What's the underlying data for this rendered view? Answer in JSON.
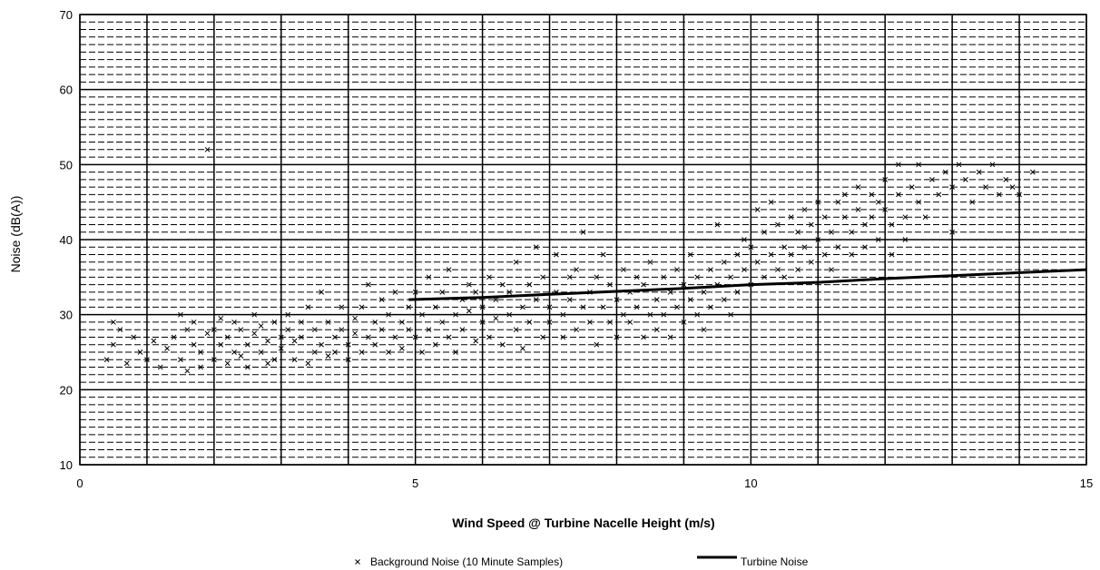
{
  "chart_data": {
    "type": "scatter",
    "title": "",
    "xlabel": "Wind Speed @ Turbine Nacelle Height (m/s)",
    "ylabel": "Noise (dB(A))",
    "xlim": [
      0,
      15
    ],
    "ylim": [
      10,
      70
    ],
    "x_ticks": [
      0,
      5,
      10,
      15
    ],
    "x_tick_labels": [
      "0",
      "5",
      "10",
      "15"
    ],
    "x_minor_gridlines": [
      1,
      2,
      3,
      4,
      6,
      7,
      8,
      9,
      11,
      12,
      13,
      14
    ],
    "y_ticks": [
      10,
      20,
      30,
      40,
      50,
      60,
      70
    ],
    "y_tick_labels": [
      "10",
      "20",
      "30",
      "40",
      "50",
      "60",
      "70"
    ],
    "y_minor_step": 1,
    "grid": true,
    "legend_position": "bottom-center",
    "series": [
      {
        "name": "Background Noise (10 Minute Samples)",
        "kind": "scatter",
        "marker": "x",
        "color": "#000000",
        "points": [
          [
            0.4,
            24
          ],
          [
            0.5,
            26
          ],
          [
            0.5,
            29
          ],
          [
            0.6,
            28
          ],
          [
            0.7,
            23.5
          ],
          [
            0.8,
            27
          ],
          [
            0.9,
            25
          ],
          [
            1.0,
            24
          ],
          [
            1.1,
            26.5
          ],
          [
            1.2,
            23
          ],
          [
            1.3,
            25.5
          ],
          [
            1.4,
            27
          ],
          [
            1.5,
            24
          ],
          [
            1.5,
            30
          ],
          [
            1.6,
            22.5
          ],
          [
            1.6,
            28
          ],
          [
            1.7,
            26
          ],
          [
            1.7,
            29
          ],
          [
            1.8,
            25
          ],
          [
            1.8,
            23
          ],
          [
            1.9,
            27.5
          ],
          [
            1.9,
            52
          ],
          [
            2.0,
            24
          ],
          [
            2.0,
            28
          ],
          [
            2.1,
            26
          ],
          [
            2.1,
            29.5
          ],
          [
            2.2,
            23.5
          ],
          [
            2.2,
            27
          ],
          [
            2.3,
            25
          ],
          [
            2.3,
            29
          ],
          [
            2.4,
            24.5
          ],
          [
            2.4,
            28
          ],
          [
            2.5,
            26
          ],
          [
            2.5,
            23
          ],
          [
            2.6,
            27.5
          ],
          [
            2.6,
            30
          ],
          [
            2.7,
            25
          ],
          [
            2.7,
            28.5
          ],
          [
            2.8,
            23.5
          ],
          [
            2.8,
            26.5
          ],
          [
            2.9,
            29
          ],
          [
            2.9,
            24
          ],
          [
            3.0,
            27
          ],
          [
            3.0,
            25.5
          ],
          [
            3.1,
            28
          ],
          [
            3.1,
            30
          ],
          [
            3.2,
            24
          ],
          [
            3.2,
            26.5
          ],
          [
            3.3,
            29
          ],
          [
            3.3,
            27
          ],
          [
            3.4,
            23.5
          ],
          [
            3.4,
            31
          ],
          [
            3.5,
            25
          ],
          [
            3.5,
            28
          ],
          [
            3.6,
            26
          ],
          [
            3.6,
            33
          ],
          [
            3.7,
            24.5
          ],
          [
            3.7,
            29
          ],
          [
            3.8,
            27
          ],
          [
            3.8,
            25
          ],
          [
            3.9,
            28
          ],
          [
            3.9,
            31
          ],
          [
            4.0,
            26
          ],
          [
            4.0,
            24
          ],
          [
            4.1,
            27.5
          ],
          [
            4.1,
            29.5
          ],
          [
            4.2,
            25
          ],
          [
            4.2,
            31
          ],
          [
            4.3,
            27
          ],
          [
            4.3,
            34
          ],
          [
            4.4,
            26
          ],
          [
            4.4,
            29
          ],
          [
            4.5,
            28
          ],
          [
            4.5,
            32
          ],
          [
            4.6,
            25
          ],
          [
            4.6,
            30
          ],
          [
            4.7,
            27
          ],
          [
            4.7,
            33
          ],
          [
            4.8,
            29
          ],
          [
            4.8,
            25.5
          ],
          [
            4.9,
            31
          ],
          [
            4.9,
            28
          ],
          [
            5.0,
            27
          ],
          [
            5.0,
            33
          ],
          [
            5.1,
            25
          ],
          [
            5.1,
            30
          ],
          [
            5.2,
            28
          ],
          [
            5.2,
            35
          ],
          [
            5.3,
            26
          ],
          [
            5.3,
            31
          ],
          [
            5.4,
            29
          ],
          [
            5.4,
            33
          ],
          [
            5.5,
            27
          ],
          [
            5.5,
            36
          ],
          [
            5.6,
            30
          ],
          [
            5.6,
            25
          ],
          [
            5.7,
            32
          ],
          [
            5.7,
            28
          ],
          [
            5.8,
            34
          ],
          [
            5.8,
            30.5
          ],
          [
            5.9,
            26.5
          ],
          [
            5.9,
            33
          ],
          [
            6.0,
            29
          ],
          [
            6.0,
            31
          ],
          [
            6.1,
            35
          ],
          [
            6.1,
            27
          ],
          [
            6.2,
            32
          ],
          [
            6.2,
            29.5
          ],
          [
            6.3,
            34
          ],
          [
            6.3,
            26
          ],
          [
            6.4,
            30
          ],
          [
            6.4,
            33
          ],
          [
            6.5,
            28
          ],
          [
            6.5,
            37
          ],
          [
            6.6,
            31
          ],
          [
            6.6,
            25.5
          ],
          [
            6.7,
            34
          ],
          [
            6.7,
            29
          ],
          [
            6.8,
            32
          ],
          [
            6.8,
            39
          ],
          [
            6.9,
            27
          ],
          [
            6.9,
            35
          ],
          [
            7.0,
            31
          ],
          [
            7.0,
            29
          ],
          [
            7.1,
            33
          ],
          [
            7.1,
            38
          ],
          [
            7.2,
            27
          ],
          [
            7.2,
            30
          ],
          [
            7.3,
            35
          ],
          [
            7.3,
            32
          ],
          [
            7.4,
            28
          ],
          [
            7.4,
            36
          ],
          [
            7.5,
            31
          ],
          [
            7.5,
            41
          ],
          [
            7.6,
            29
          ],
          [
            7.6,
            33
          ],
          [
            7.7,
            35
          ],
          [
            7.7,
            26
          ],
          [
            7.8,
            31
          ],
          [
            7.8,
            38
          ],
          [
            7.9,
            29
          ],
          [
            7.9,
            34
          ],
          [
            8.0,
            32
          ],
          [
            8.0,
            27
          ],
          [
            8.1,
            36
          ],
          [
            8.1,
            30
          ],
          [
            8.2,
            33
          ],
          [
            8.2,
            29
          ],
          [
            8.3,
            35
          ],
          [
            8.3,
            31
          ],
          [
            8.4,
            27
          ],
          [
            8.4,
            34
          ],
          [
            8.5,
            30
          ],
          [
            8.5,
            37
          ],
          [
            8.6,
            32
          ],
          [
            8.6,
            28
          ],
          [
            8.7,
            35
          ],
          [
            8.7,
            30
          ],
          [
            8.8,
            33
          ],
          [
            8.8,
            27
          ],
          [
            8.9,
            36
          ],
          [
            8.9,
            31
          ],
          [
            9.0,
            29
          ],
          [
            9.0,
            34
          ],
          [
            9.1,
            32
          ],
          [
            9.1,
            38
          ],
          [
            9.2,
            30
          ],
          [
            9.2,
            35
          ],
          [
            9.3,
            33
          ],
          [
            9.3,
            28
          ],
          [
            9.4,
            36
          ],
          [
            9.4,
            31
          ],
          [
            9.5,
            34
          ],
          [
            9.5,
            42
          ],
          [
            9.6,
            32
          ],
          [
            9.6,
            37
          ],
          [
            9.7,
            35
          ],
          [
            9.7,
            30
          ],
          [
            9.8,
            38
          ],
          [
            9.8,
            33
          ],
          [
            9.9,
            36
          ],
          [
            9.9,
            40
          ],
          [
            10.0,
            34
          ],
          [
            10.0,
            39
          ],
          [
            10.1,
            37
          ],
          [
            10.1,
            44
          ],
          [
            10.2,
            35
          ],
          [
            10.2,
            41
          ],
          [
            10.3,
            38
          ],
          [
            10.3,
            45
          ],
          [
            10.4,
            36
          ],
          [
            10.4,
            42
          ],
          [
            10.5,
            39
          ],
          [
            10.5,
            35
          ],
          [
            10.6,
            43
          ],
          [
            10.6,
            38
          ],
          [
            10.7,
            41
          ],
          [
            10.7,
            36
          ],
          [
            10.8,
            44
          ],
          [
            10.8,
            39
          ],
          [
            10.9,
            37
          ],
          [
            10.9,
            42
          ],
          [
            11.0,
            40
          ],
          [
            11.0,
            45
          ],
          [
            11.1,
            38
          ],
          [
            11.1,
            43
          ],
          [
            11.2,
            41
          ],
          [
            11.2,
            36
          ],
          [
            11.3,
            45
          ],
          [
            11.3,
            39
          ],
          [
            11.4,
            43
          ],
          [
            11.4,
            46
          ],
          [
            11.5,
            41
          ],
          [
            11.5,
            38
          ],
          [
            11.6,
            44
          ],
          [
            11.6,
            47
          ],
          [
            11.7,
            42
          ],
          [
            11.7,
            39
          ],
          [
            11.8,
            46
          ],
          [
            11.8,
            43
          ],
          [
            11.9,
            40
          ],
          [
            11.9,
            45
          ],
          [
            12.0,
            44
          ],
          [
            12.0,
            48
          ],
          [
            12.1,
            42
          ],
          [
            12.1,
            38
          ],
          [
            12.2,
            46
          ],
          [
            12.2,
            50
          ],
          [
            12.3,
            43
          ],
          [
            12.3,
            40
          ],
          [
            12.4,
            47
          ],
          [
            12.5,
            45
          ],
          [
            12.5,
            50
          ],
          [
            12.6,
            43
          ],
          [
            12.7,
            48
          ],
          [
            12.8,
            46
          ],
          [
            12.9,
            49
          ],
          [
            13.0,
            47
          ],
          [
            13.0,
            41
          ],
          [
            13.1,
            50
          ],
          [
            13.2,
            48
          ],
          [
            13.3,
            45
          ],
          [
            13.4,
            49
          ],
          [
            13.5,
            47
          ],
          [
            13.6,
            50
          ],
          [
            13.7,
            46
          ],
          [
            13.8,
            48
          ],
          [
            13.9,
            47
          ],
          [
            14.0,
            46
          ],
          [
            14.2,
            49
          ]
        ]
      },
      {
        "name": "Turbine Noise",
        "kind": "line",
        "color": "#000000",
        "x": [
          4.9,
          6,
          7,
          8,
          9,
          10,
          11,
          12,
          13,
          14,
          15
        ],
        "y": [
          32,
          32.3,
          32.7,
          33.1,
          33.5,
          34,
          34.3,
          34.8,
          35.2,
          35.6,
          36
        ]
      }
    ]
  }
}
